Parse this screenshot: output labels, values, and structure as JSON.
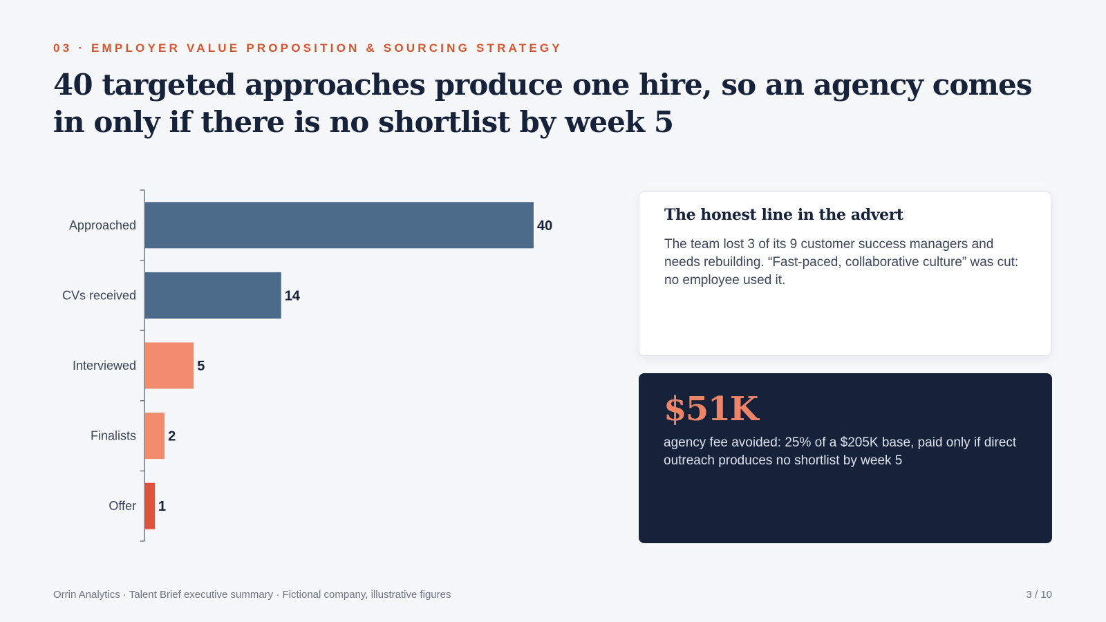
{
  "kicker": "03 · EMPLOYER VALUE PROPOSITION & SOURCING STRATEGY",
  "headline": "40 targeted approaches produce one hire, so an agency comes in only if there is no shortlist by week 5",
  "card": {
    "title": "The honest line in the advert",
    "body": "The team lost 3 of its 9 customer success managers and needs rebuilding. “Fast-paced, collaborative culture” was cut: no employee used it."
  },
  "stat": {
    "value": "$51K",
    "label": "agency fee avoided: 25% of a $205K base, paid only if direct outreach produces no shortlist by week 5"
  },
  "footer": "Orrin Analytics · Talent Brief executive summary · Fictional company, illustrative figures",
  "page": "3 / 10",
  "chart_data": {
    "type": "bar",
    "orientation": "horizontal",
    "categories": [
      "Approached",
      "CVs received",
      "Interviewed",
      "Finalists",
      "Offer"
    ],
    "values": [
      40,
      14,
      5,
      2,
      1
    ],
    "colors": [
      "#4c6a8a",
      "#4c6a8a",
      "#f28a6e",
      "#f28a6e",
      "#e0533a"
    ],
    "xlim": [
      0,
      40
    ],
    "grid": false,
    "legend": "none",
    "data_labels": true
  }
}
